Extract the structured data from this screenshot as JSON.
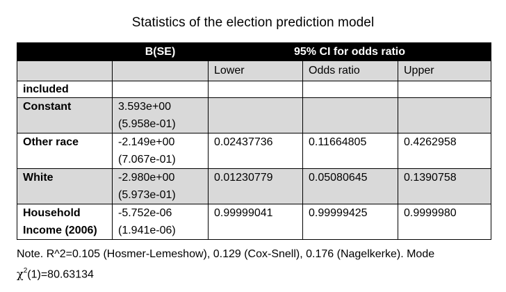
{
  "title": "Statistics of the election prediction model",
  "table": {
    "header_top": {
      "col0": "",
      "b": "B(SE)",
      "ci": "95% CI for odds ratio"
    },
    "header_sub": [
      "",
      "",
      "Lower",
      "Odds ratio",
      "Upper"
    ],
    "rows": [
      {
        "label": [
          "included"
        ],
        "b": [
          "",
          ""
        ],
        "lower": "",
        "odds": "",
        "upper": ""
      },
      {
        "label": [
          "Constant"
        ],
        "b": [
          "3.593e+00",
          "(5.958e-01)"
        ],
        "lower": "",
        "odds": "",
        "upper": ""
      },
      {
        "label": [
          "Other race"
        ],
        "b": [
          "-2.149e+00",
          "(7.067e-01)"
        ],
        "lower": "0.02437736",
        "odds": "0.11664805",
        "upper": "0.4262958"
      },
      {
        "label": [
          "White"
        ],
        "b": [
          "-2.980e+00",
          "(5.973e-01)"
        ],
        "lower": "0.01230779",
        "odds": "0.05080645",
        "upper": "0.1390758"
      },
      {
        "label": [
          "Household",
          "Income (2006)"
        ],
        "b": [
          "-5.752e-06",
          "(1.941e-06)"
        ],
        "lower": "0.99999041",
        "odds": "0.99999425",
        "upper": "0.9999980"
      }
    ]
  },
  "note": {
    "line1": "Note. R^2=0.105 (Hosmer-Lemeshow), 0.129 (Cox-Snell), 0.176 (Nagelkerke). Mode",
    "chi_symbol": "χ",
    "chi_sup": "2",
    "line2_rest": "(1)=80.63134"
  }
}
